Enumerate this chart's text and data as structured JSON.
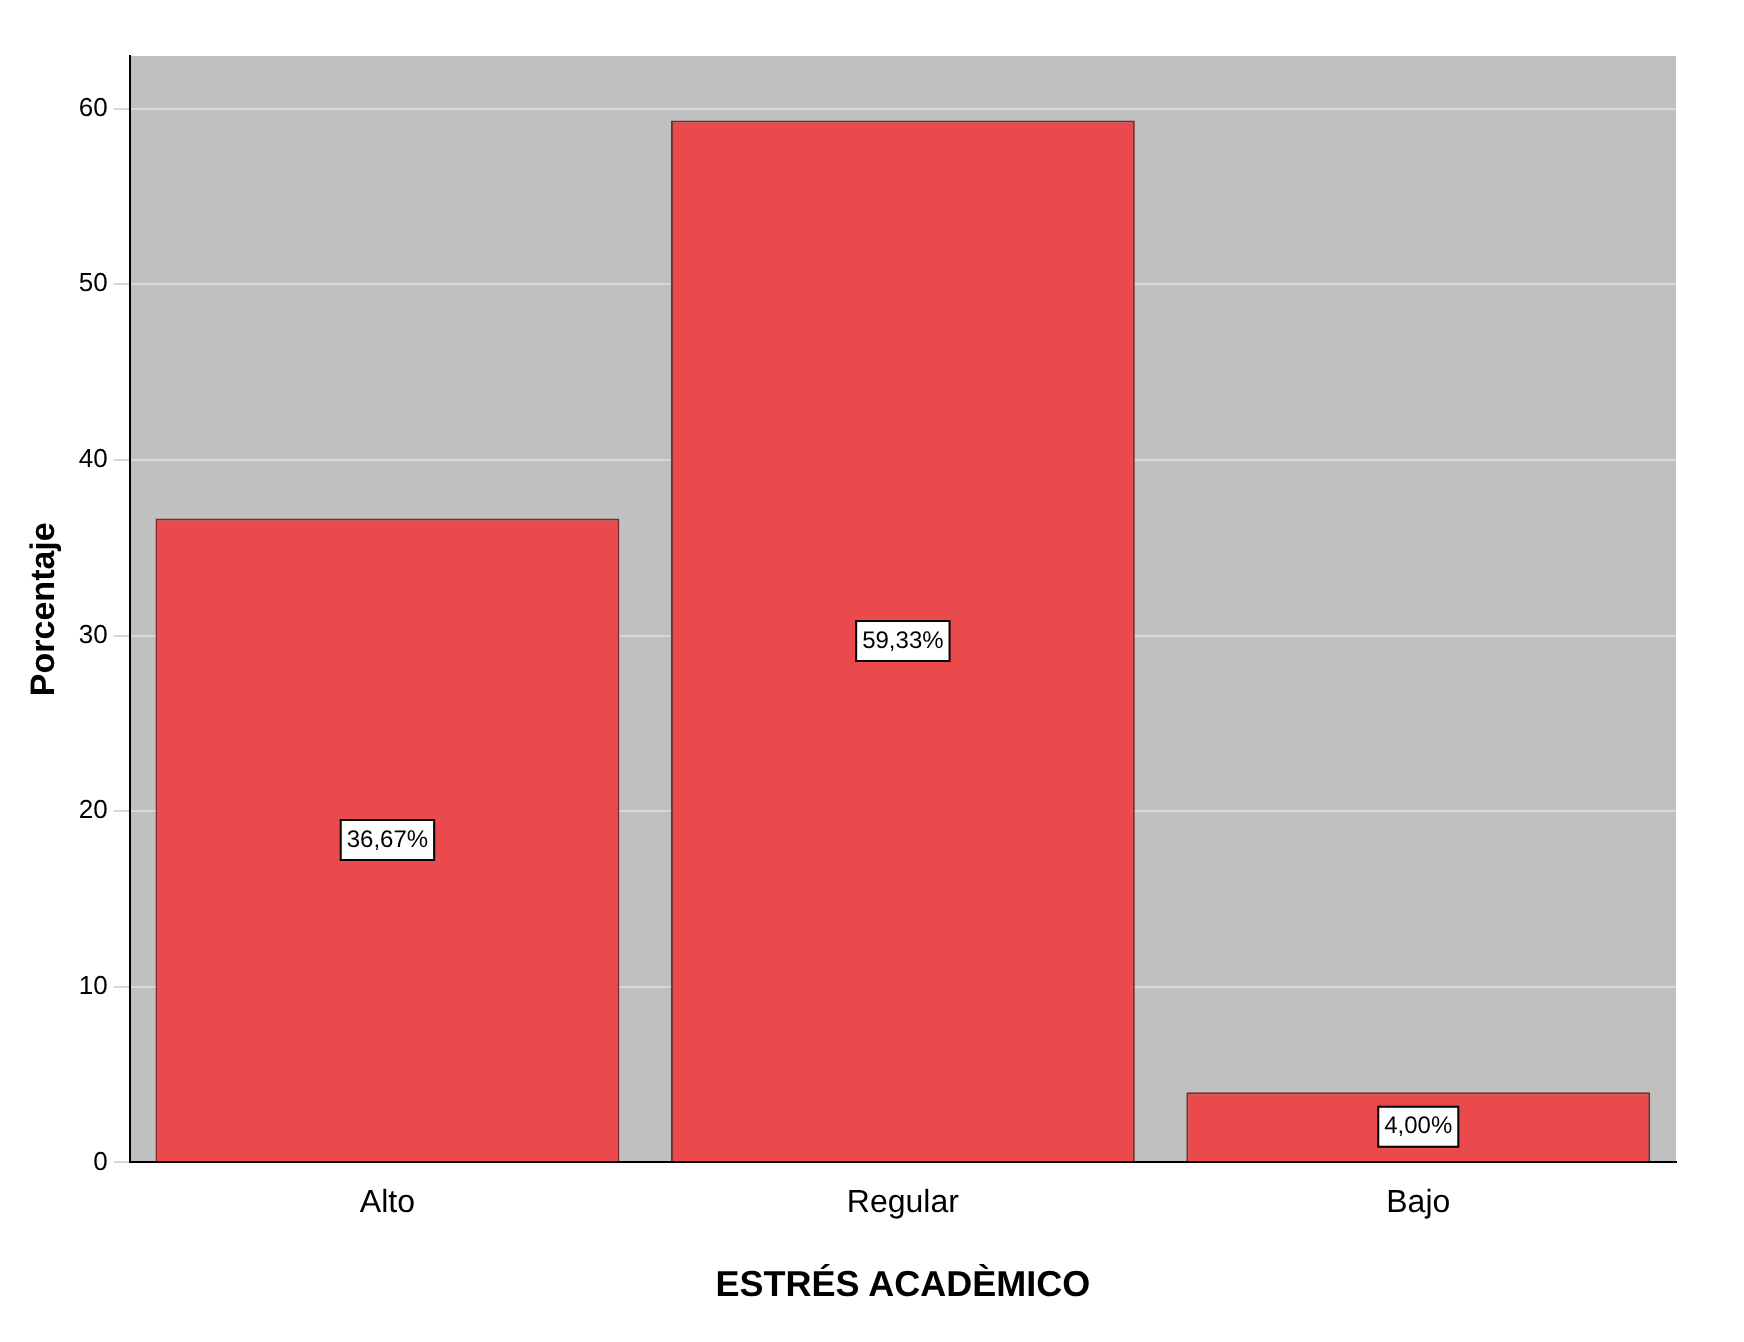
{
  "chart_data": {
    "type": "bar",
    "xlabel": "ESTRÉS ACADÈMICO",
    "ylabel": "Porcentaje",
    "categories": [
      "Alto",
      "Regular",
      "Bajo"
    ],
    "values": [
      36.67,
      59.33,
      4.0
    ],
    "value_labels": [
      "36,67%",
      "59,33%",
      "4,00%"
    ],
    "color": "#ea4a4c",
    "ylim": [
      0,
      63
    ],
    "yticks": [
      0,
      10,
      20,
      30,
      40,
      50,
      60
    ],
    "grid": "y"
  }
}
